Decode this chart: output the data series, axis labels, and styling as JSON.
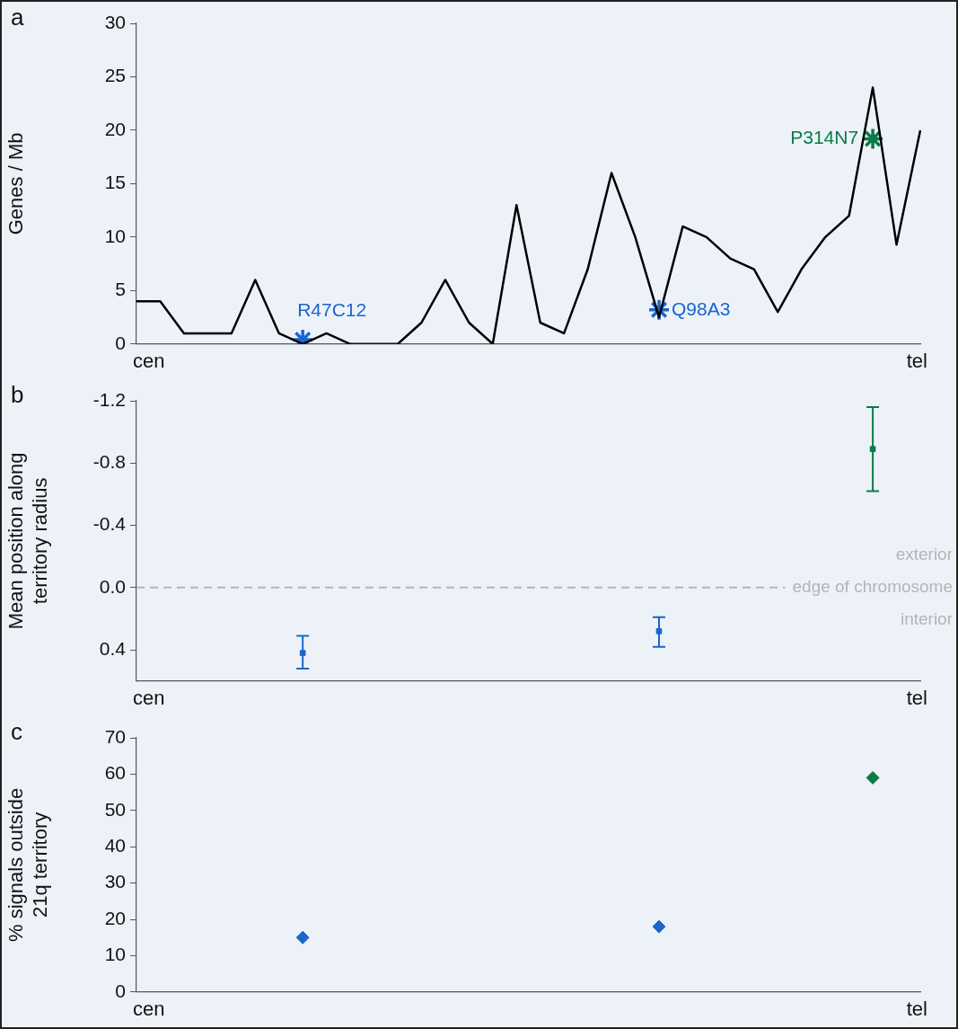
{
  "chart_data": [
    {
      "type": "line",
      "title": "a",
      "ylabel": "Genes / Mb",
      "categories": [
        null,
        null,
        null,
        null,
        null,
        null,
        null,
        null,
        null,
        null,
        null,
        null,
        null,
        null,
        null,
        null,
        null,
        null,
        null,
        null,
        null,
        null,
        null,
        null,
        null,
        null,
        null,
        null,
        null,
        null,
        null,
        null,
        null,
        null
      ],
      "ylim": [
        0,
        30
      ],
      "yticks": [
        0,
        5,
        10,
        15,
        20,
        25,
        30
      ],
      "grid": false,
      "annotations": [
        "cen",
        "tel"
      ],
      "series": [
        {
          "type": "line",
          "marker": "none",
          "color": "#000000",
          "values": [
            4,
            4,
            1,
            1,
            1,
            6,
            1,
            0,
            1,
            0,
            0,
            0,
            2,
            6,
            2,
            0,
            13,
            2,
            1,
            7,
            16,
            10,
            2.5,
            11,
            10,
            8,
            7,
            3,
            7,
            10,
            12,
            24,
            9.3,
            20
          ]
        },
        {
          "type": "scatter",
          "marker": "cross",
          "name": "R47C12",
          "color": "#1a66cc",
          "values": [
            null,
            null,
            null,
            null,
            null,
            null,
            null,
            0.4,
            null,
            null,
            null,
            null,
            null,
            null,
            null,
            null,
            null,
            null,
            null,
            null,
            null,
            null,
            null,
            null,
            null,
            null,
            null,
            null,
            null,
            null,
            null,
            null,
            null,
            null
          ]
        },
        {
          "type": "scatter",
          "marker": "cross",
          "name": "Q98A3",
          "color": "#1a66cc",
          "values": [
            null,
            null,
            null,
            null,
            null,
            null,
            null,
            null,
            null,
            null,
            null,
            null,
            null,
            null,
            null,
            null,
            null,
            null,
            null,
            null,
            null,
            null,
            3.2,
            null,
            null,
            null,
            null,
            null,
            null,
            null,
            null,
            null,
            null,
            null
          ]
        },
        {
          "type": "scatter",
          "marker": "cross",
          "name": "P314N7",
          "color": "#0b7a45",
          "values": [
            null,
            null,
            null,
            null,
            null,
            null,
            null,
            null,
            null,
            null,
            null,
            null,
            null,
            null,
            null,
            null,
            null,
            null,
            null,
            null,
            null,
            null,
            null,
            null,
            null,
            null,
            null,
            null,
            null,
            null,
            null,
            19.2,
            null,
            null
          ]
        }
      ]
    },
    {
      "type": "scatter",
      "title": "b",
      "ylabel": "Mean position along\nterritory radius",
      "categories": [
        null,
        null,
        null,
        null,
        null,
        null,
        null,
        null,
        null,
        null,
        null,
        null,
        null,
        null,
        null,
        null,
        null,
        null,
        null,
        null,
        null,
        null,
        null,
        null,
        null,
        null,
        null,
        null,
        null,
        null,
        null,
        null,
        null,
        null
      ],
      "ylim": [
        0.6,
        -1.2
      ],
      "yticks": [
        -1.2,
        -0.8,
        -0.4,
        {
          "value": 0,
          "label": "0.0"
        },
        0.4
      ],
      "grid": false,
      "marker": "square",
      "series": [
        {
          "color": "#1a66cc",
          "values": [
            null,
            null,
            null,
            null,
            null,
            null,
            null,
            0.42,
            null,
            null,
            null,
            null,
            null,
            null,
            null,
            null,
            null,
            null,
            null,
            null,
            null,
            null,
            0.28,
            null,
            null,
            null,
            null,
            null,
            null,
            null,
            null,
            null,
            null,
            null
          ],
          "errors": [
            null,
            null,
            null,
            null,
            null,
            null,
            null,
            [
              0.31,
              0.52
            ],
            null,
            null,
            null,
            null,
            null,
            null,
            null,
            null,
            null,
            null,
            null,
            null,
            null,
            null,
            [
              0.19,
              0.38
            ],
            null,
            null,
            null,
            null,
            null,
            null,
            null,
            null,
            null,
            null,
            null
          ]
        },
        {
          "color": "#0b7a45",
          "values": [
            null,
            null,
            null,
            null,
            null,
            null,
            null,
            null,
            null,
            null,
            null,
            null,
            null,
            null,
            null,
            null,
            null,
            null,
            null,
            null,
            null,
            null,
            null,
            null,
            null,
            null,
            null,
            null,
            null,
            null,
            null,
            -0.89,
            null,
            null
          ],
          "errors": [
            null,
            null,
            null,
            null,
            null,
            null,
            null,
            null,
            null,
            null,
            null,
            null,
            null,
            null,
            null,
            null,
            null,
            null,
            null,
            null,
            null,
            null,
            null,
            null,
            null,
            null,
            null,
            null,
            null,
            null,
            null,
            [
              -1.16,
              -0.62
            ],
            null,
            null
          ]
        }
      ],
      "ref_lines": [
        {
          "axis": "y",
          "value": 0,
          "label": "edge of chromosome",
          "color": "#b4b4b8",
          "line_style": "dashed"
        }
      ],
      "annotations": [
        "exterior",
        "interior",
        "cen",
        "tel"
      ]
    },
    {
      "type": "scatter",
      "title": "c",
      "ylabel": "% signals outside\n21q territory",
      "categories": [
        null,
        null,
        null,
        null,
        null,
        null,
        null,
        null,
        null,
        null,
        null,
        null,
        null,
        null,
        null,
        null,
        null,
        null,
        null,
        null,
        null,
        null,
        null,
        null,
        null,
        null,
        null,
        null,
        null,
        null,
        null,
        null,
        null,
        null
      ],
      "ylim": [
        0,
        70
      ],
      "yticks": [
        0,
        10,
        20,
        30,
        40,
        50,
        60,
        70
      ],
      "grid": false,
      "marker": "diamond",
      "annotations": [
        "cen",
        "tel"
      ],
      "series": [
        {
          "color": "#1a66cc",
          "values": [
            null,
            null,
            null,
            null,
            null,
            null,
            null,
            15,
            null,
            null,
            null,
            null,
            null,
            null,
            null,
            null,
            null,
            null,
            null,
            null,
            null,
            null,
            18,
            null,
            null,
            null,
            null,
            null,
            null,
            null,
            null,
            null,
            null,
            null
          ]
        },
        {
          "color": "#0b7a45",
          "values": [
            null,
            null,
            null,
            null,
            null,
            null,
            null,
            null,
            null,
            null,
            null,
            null,
            null,
            null,
            null,
            null,
            null,
            null,
            null,
            null,
            null,
            null,
            null,
            null,
            null,
            null,
            null,
            null,
            null,
            null,
            null,
            59,
            null,
            null
          ]
        }
      ]
    }
  ]
}
